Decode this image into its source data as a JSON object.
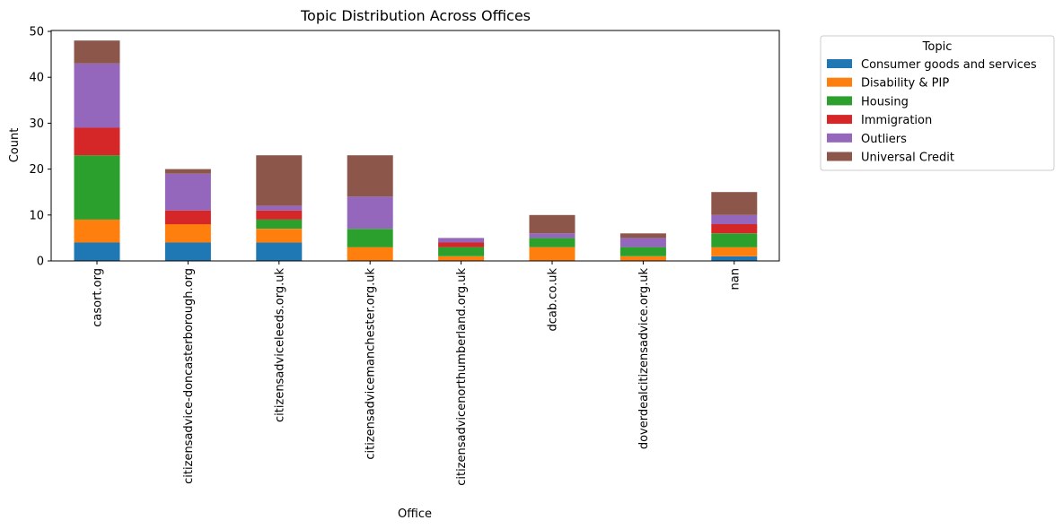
{
  "chart_data": {
    "type": "bar",
    "stacked": true,
    "title": "Topic Distribution Across Offices",
    "xlabel": "Office",
    "ylabel": "Count",
    "ylim": [
      0,
      50
    ],
    "yticks": [
      0,
      10,
      20,
      30,
      40,
      50
    ],
    "grid": false,
    "legend": {
      "title": "Topic",
      "placement": "outside-top-right"
    },
    "categories": [
      "casort.org",
      "citizensadvice-doncasterborough.org",
      "citizensadviceleeds.org.uk",
      "citizensadvicemanchester.org.uk",
      "citizensadvicenorthumberland.org.uk",
      "dcab.co.uk",
      "doverdealcitizensadvice.org.uk",
      "nan"
    ],
    "series": [
      {
        "name": "Consumer goods and services",
        "color": "#1f77b4",
        "values": [
          4,
          4,
          4,
          0,
          0,
          0,
          0,
          1
        ]
      },
      {
        "name": "Disability & PIP",
        "color": "#ff7f0e",
        "values": [
          5,
          4,
          3,
          3,
          1,
          3,
          1,
          2
        ]
      },
      {
        "name": "Housing",
        "color": "#2ca02c",
        "values": [
          14,
          0,
          2,
          4,
          2,
          2,
          2,
          3
        ]
      },
      {
        "name": "Immigration",
        "color": "#d62728",
        "values": [
          6,
          3,
          2,
          0,
          1,
          0,
          0,
          2
        ]
      },
      {
        "name": "Outliers",
        "color": "#9467bd",
        "values": [
          14,
          8,
          1,
          7,
          1,
          1,
          2,
          2
        ]
      },
      {
        "name": "Universal Credit",
        "color": "#8c564b",
        "values": [
          5,
          1,
          11,
          9,
          0,
          4,
          1,
          5
        ]
      }
    ]
  }
}
